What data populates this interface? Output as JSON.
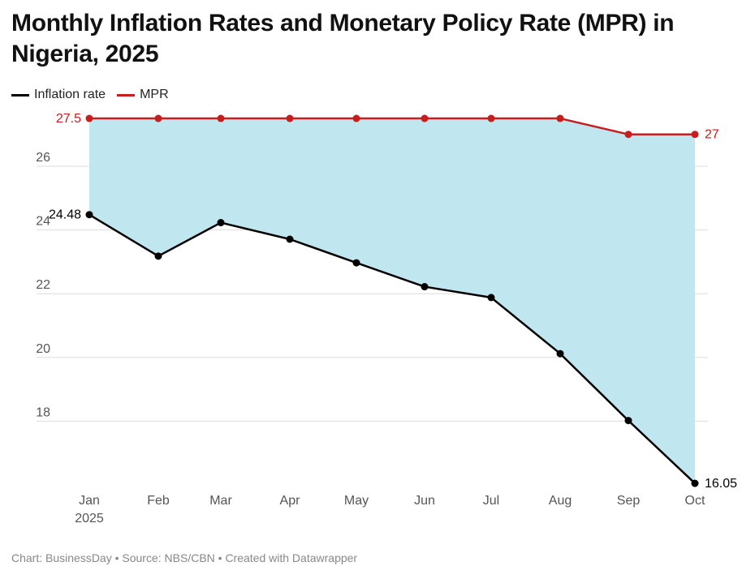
{
  "title": "Monthly Inflation Rates and Monetary Policy Rate (MPR) in Nigeria, 2025",
  "footer": "Chart: BusinessDay • Source: NBS/CBN • Created with Datawrapper",
  "chart_data": {
    "type": "line",
    "title": "Monthly Inflation Rates and Monetary Policy Rate (MPR) in Nigeria, 2025",
    "categories": [
      "Jan",
      "Feb",
      "Mar",
      "Apr",
      "May",
      "Jun",
      "Jul",
      "Aug",
      "Sep",
      "Oct"
    ],
    "x_tick_labels": [
      "Jan\n2025",
      "Feb",
      "Mar",
      "Apr",
      "May",
      "Jun",
      "Jul",
      "Aug",
      "Sep",
      "Oct"
    ],
    "year_label": "2025",
    "series": [
      {
        "name": "Inflation rate",
        "color": "#000000",
        "values": [
          24.48,
          23.18,
          24.23,
          23.71,
          22.97,
          22.22,
          21.88,
          20.12,
          18.02,
          16.05
        ]
      },
      {
        "name": "MPR",
        "color": "#c71e1d",
        "values": [
          27.5,
          27.5,
          27.5,
          27.5,
          27.5,
          27.5,
          27.5,
          27.5,
          27,
          27
        ]
      }
    ],
    "data_labels": {
      "inflation_first": "24.48",
      "inflation_last": "16.05",
      "mpr_first": "27.5",
      "mpr_last": "27"
    },
    "fill_between_color": "#c0e6f0",
    "yticks": [
      18,
      20,
      22,
      24,
      26
    ],
    "ylim": [
      16,
      27.5
    ],
    "grid": true,
    "legend_position": "top-left",
    "xlabel": "",
    "ylabel": ""
  }
}
